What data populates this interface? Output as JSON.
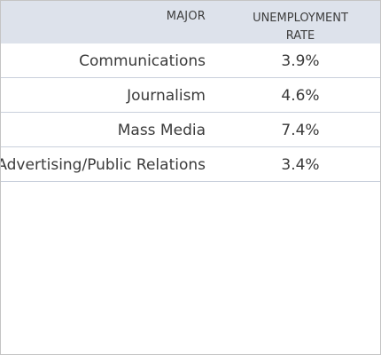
{
  "chart_data": {
    "type": "table",
    "columns": [
      "MAJOR",
      "UNEMPLOYMENT RATE"
    ],
    "header": {
      "major": "MAJOR",
      "rate_line1": "UNEMPLOYMENT",
      "rate_line2": "RATE"
    },
    "rows": [
      {
        "major": "Communications",
        "rate": "3.9%"
      },
      {
        "major": "Journalism",
        "rate": "4.6%"
      },
      {
        "major": "Mass Media",
        "rate": "7.4%"
      },
      {
        "major": "Advertising/Public Relations",
        "rate": "3.4%"
      }
    ],
    "values": [
      3.9,
      4.6,
      7.4,
      3.4
    ]
  },
  "colors": {
    "header_background": "#dde2eb",
    "row_divider": "#c9d0dc",
    "text": "#3a3a3a"
  }
}
